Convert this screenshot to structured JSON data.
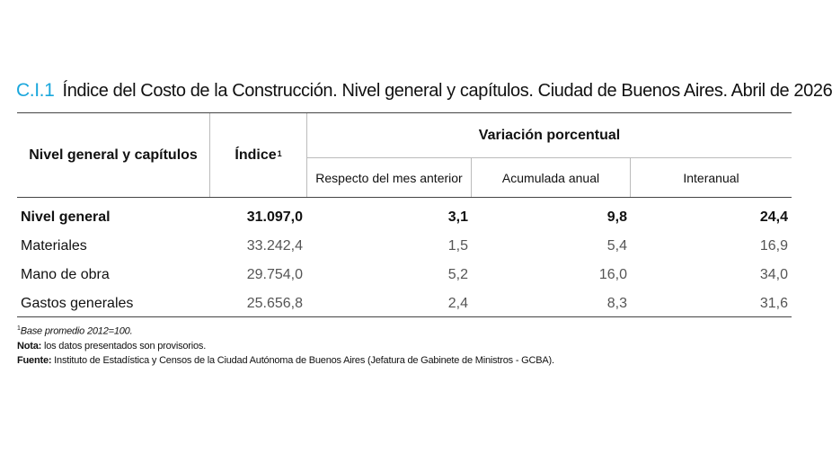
{
  "title": {
    "code": "C.I.1",
    "text": "Índice del Costo de la Construcción. Nivel general y capítulos. Ciudad de Buenos Aires. Abril de 2026"
  },
  "table": {
    "headers": {
      "col_name": "Nivel general y capítulos",
      "col_index": "Índice",
      "col_index_sup": "1",
      "group_variation": "Variación porcentual",
      "sub_prev_month": "Respecto del mes anterior",
      "sub_cumulative": "Acumulada  anual",
      "sub_interannual": "Interanual"
    },
    "rows": [
      {
        "name": "Nivel general",
        "index": "31.097,0",
        "prev_month": "3,1",
        "cumulative": "9,8",
        "interannual": "24,4"
      },
      {
        "name": "Materiales",
        "index": "33.242,4",
        "prev_month": "1,5",
        "cumulative": "5,4",
        "interannual": "16,9"
      },
      {
        "name": "Mano de obra",
        "index": "29.754,0",
        "prev_month": "5,2",
        "cumulative": "16,0",
        "interannual": "34,0"
      },
      {
        "name": "Gastos generales",
        "index": "25.656,8",
        "prev_month": "2,4",
        "cumulative": "8,3",
        "interannual": "31,6"
      }
    ]
  },
  "notes": {
    "base_sup": "1",
    "base_text": "Base promedio 2012=100.",
    "nota_label": "Nota:",
    "nota_text": " los datos presentados son provisorios.",
    "fuente_label": "Fuente:",
    "fuente_text": " Instituto de Estadística y Censos de la Ciudad Autónoma de Buenos Aires (Jefatura de Gabinete de Ministros - GCBA)."
  },
  "colors": {
    "accent": "#1aa7dc"
  }
}
